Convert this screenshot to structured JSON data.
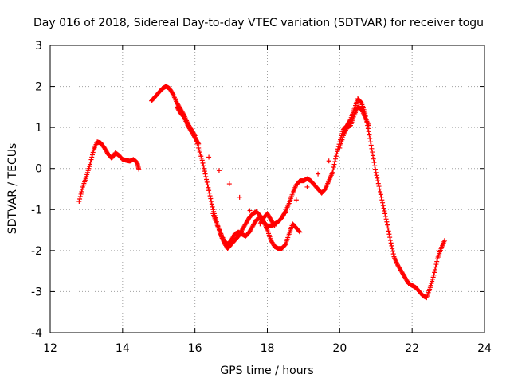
{
  "chart_data": {
    "type": "scatter",
    "title": "Day 016 of 2018, Sidereal Day-to-day VTEC variation (SDTVAR) for receiver togu",
    "xlabel": "GPS time / hours",
    "ylabel": "SDTVAR / TECUs",
    "xlim": [
      12,
      24
    ],
    "ylim": [
      -4,
      3
    ],
    "xticks": [
      12,
      14,
      16,
      18,
      20,
      22,
      24
    ],
    "yticks": [
      -4,
      -3,
      -2,
      -1,
      0,
      1,
      2,
      3
    ],
    "xtick_labels": [
      "12",
      "14",
      "16",
      "18",
      "20",
      "22",
      "24"
    ],
    "ytick_labels": [
      "-4",
      "-3",
      "-2",
      "-1",
      "0",
      "1",
      "2",
      "3"
    ],
    "grid": true,
    "marker": "+",
    "color": "#ff0000",
    "series": [
      {
        "name": "segment-1",
        "x": [
          12.8,
          12.9,
          13.0,
          13.1,
          13.2,
          13.3,
          13.4,
          13.5,
          13.6,
          13.7,
          13.8,
          13.9,
          14.0,
          14.1,
          14.2,
          14.3,
          14.4,
          14.45
        ],
        "y": [
          -0.8,
          -0.45,
          -0.2,
          0.1,
          0.45,
          0.65,
          0.62,
          0.5,
          0.35,
          0.25,
          0.38,
          0.32,
          0.22,
          0.2,
          0.18,
          0.22,
          0.15,
          -0.02
        ]
      },
      {
        "name": "segment-2",
        "x": [
          14.8,
          14.9,
          15.0,
          15.1,
          15.2,
          15.3,
          15.4,
          15.5,
          15.6,
          15.7,
          15.8,
          15.9,
          16.0,
          16.1,
          16.2,
          16.3,
          16.4,
          16.5,
          16.6,
          16.7,
          16.8,
          16.9,
          17.0,
          17.1,
          17.2,
          17.3,
          17.4,
          17.5,
          17.6,
          17.7,
          17.8,
          17.9,
          18.0,
          18.1,
          18.2,
          18.3,
          18.4,
          18.5,
          18.6,
          18.7,
          18.8,
          18.9,
          19.0,
          19.1,
          19.2,
          19.3,
          19.4,
          19.5,
          19.6,
          19.7,
          19.8,
          19.9,
          20.0,
          20.1,
          20.2,
          20.3,
          20.4,
          20.5,
          20.6,
          20.7,
          20.8,
          20.9,
          21.0,
          21.1,
          21.2,
          21.3,
          21.4,
          21.5,
          21.6,
          21.7,
          21.8,
          21.9,
          22.0,
          22.1,
          22.2,
          22.3,
          22.4,
          22.5,
          22.6,
          22.7,
          22.8,
          22.9
        ],
        "y": [
          1.65,
          1.75,
          1.85,
          1.95,
          2.0,
          1.95,
          1.8,
          1.6,
          1.45,
          1.3,
          1.1,
          0.95,
          0.8,
          0.5,
          0.2,
          -0.2,
          -0.6,
          -1.0,
          -1.3,
          -1.6,
          -1.8,
          -1.95,
          -1.85,
          -1.75,
          -1.65,
          -1.5,
          -1.35,
          -1.2,
          -1.1,
          -1.05,
          -1.15,
          -1.3,
          -1.4,
          -1.4,
          -1.35,
          -1.3,
          -1.2,
          -1.05,
          -0.85,
          -0.6,
          -0.4,
          -0.3,
          -0.3,
          -0.25,
          -0.3,
          -0.4,
          -0.5,
          -0.6,
          -0.5,
          -0.3,
          -0.1,
          0.3,
          0.65,
          0.95,
          1.05,
          1.2,
          1.45,
          1.7,
          1.6,
          1.35,
          0.9,
          0.4,
          -0.1,
          -0.5,
          -0.9,
          -1.3,
          -1.75,
          -2.15,
          -2.35,
          -2.5,
          -2.65,
          -2.8,
          -2.85,
          -2.9,
          -3.0,
          -3.1,
          -3.15,
          -2.9,
          -2.6,
          -2.2,
          -1.95,
          -1.75
        ]
      },
      {
        "name": "segment-3",
        "x": [
          16.5,
          16.6,
          16.7,
          16.8,
          16.9,
          17.0,
          17.1,
          17.2,
          17.3,
          17.4,
          17.5,
          17.6,
          17.7,
          17.8,
          17.9,
          18.0,
          18.1,
          18.2,
          18.3,
          18.4,
          18.5,
          18.6,
          18.7,
          18.8,
          18.9
        ],
        "y": [
          -1.1,
          -1.35,
          -1.55,
          -1.75,
          -1.85,
          -1.75,
          -1.6,
          -1.55,
          -1.6,
          -1.65,
          -1.55,
          -1.4,
          -1.25,
          -1.2,
          -1.3,
          -1.5,
          -1.75,
          -1.9,
          -1.95,
          -1.95,
          -1.85,
          -1.6,
          -1.35,
          -1.45,
          -1.55
        ]
      },
      {
        "name": "segment-4",
        "x": [
          15.5,
          15.6,
          15.7,
          15.8,
          15.9,
          16.0,
          16.1,
          17.8,
          17.9,
          18.0,
          18.1,
          18.2,
          20.0,
          20.1,
          20.2,
          20.3,
          20.4,
          20.5,
          20.6,
          20.7,
          20.8
        ],
        "y": [
          1.5,
          1.35,
          1.25,
          1.05,
          0.9,
          0.75,
          0.6,
          -1.35,
          -1.2,
          -1.1,
          -1.25,
          -1.4,
          0.5,
          0.8,
          1.0,
          1.05,
          1.3,
          1.5,
          1.45,
          1.25,
          1.05
        ]
      }
    ]
  }
}
